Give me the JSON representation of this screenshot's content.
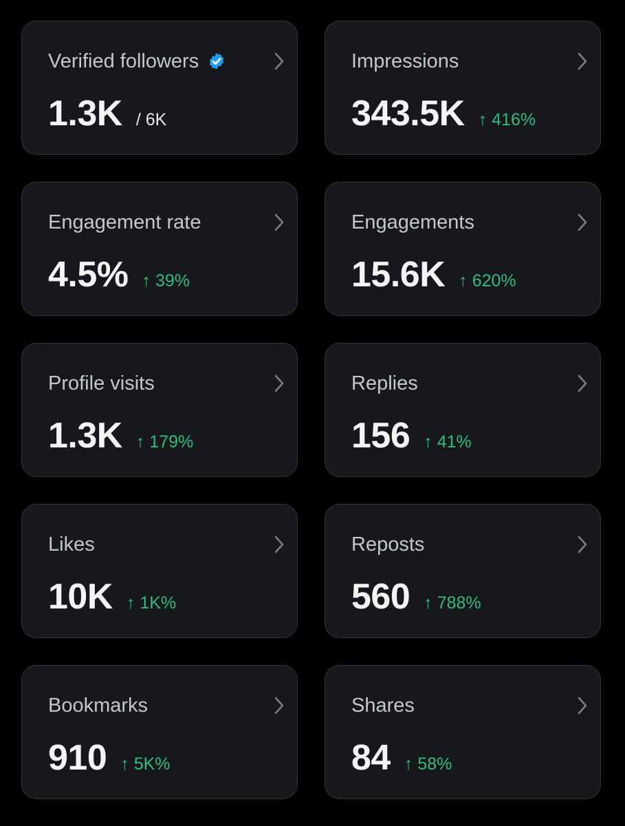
{
  "colors": {
    "background": "#000000",
    "card": "#16181c",
    "card_border": "#33363b",
    "positive": "#2fbd7f",
    "verified": "#1d9bf0"
  },
  "cards": [
    {
      "title": "Verified followers",
      "value": "1.3K",
      "secondary": "/ 6K",
      "badge_icon": "verified-badge-icon"
    },
    {
      "title": "Impressions",
      "value": "343.5K",
      "change": "↑ 416%"
    },
    {
      "title": "Engagement rate",
      "value": "4.5%",
      "change": "↑ 39%"
    },
    {
      "title": "Engagements",
      "value": "15.6K",
      "change": "↑ 620%"
    },
    {
      "title": "Profile visits",
      "value": "1.3K",
      "change": "↑ 179%"
    },
    {
      "title": "Replies",
      "value": "156",
      "change": "↑ 41%"
    },
    {
      "title": "Likes",
      "value": "10K",
      "change": "↑ 1K%"
    },
    {
      "title": "Reposts",
      "value": "560",
      "change": "↑ 788%"
    },
    {
      "title": "Bookmarks",
      "value": "910",
      "change": "↑ 5K%"
    },
    {
      "title": "Shares",
      "value": "84",
      "change": "↑ 58%"
    }
  ]
}
